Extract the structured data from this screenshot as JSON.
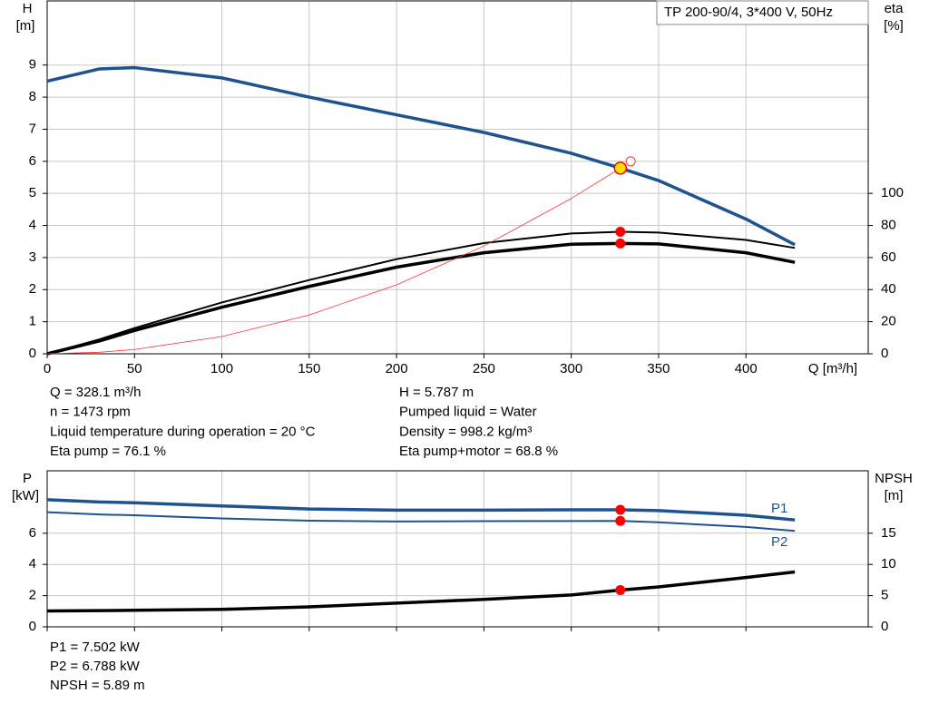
{
  "chart_data": [
    {
      "type": "line",
      "legend_box": "TP 200-90/4, 3*400 V, 50Hz",
      "y_label": [
        "H",
        "[m]"
      ],
      "y2_label": [
        "eta",
        "[%]"
      ],
      "x_label": "Q [m³/h]",
      "x": [
        0,
        30,
        50,
        100,
        150,
        200,
        250,
        300,
        328.1,
        350,
        400,
        428
      ],
      "xlim": [
        0,
        470
      ],
      "xticks": [
        0,
        50,
        100,
        150,
        200,
        250,
        300,
        350,
        400
      ],
      "ylim": [
        0,
        11
      ],
      "yticks": [
        0,
        1,
        2,
        3,
        4,
        5,
        6,
        7,
        8,
        9
      ],
      "y2lim": [
        0,
        220
      ],
      "y2ticks": [
        0,
        20,
        40,
        60,
        80,
        100
      ],
      "grid": true,
      "marker_at": 328.1,
      "open_marker": {
        "x": 334,
        "y": 6.0
      },
      "series": [
        {
          "color": "#1f5390",
          "values": [
            8.5,
            8.88,
            8.92,
            8.6,
            8.0,
            7.45,
            6.9,
            6.25,
            5.787,
            5.4,
            4.2,
            3.4
          ],
          "marker_color": "#ffe000"
        },
        {
          "color": "#000000",
          "axis": "y2",
          "values": [
            0,
            9,
            16,
            32,
            46,
            59,
            69,
            75,
            76.1,
            75.6,
            71,
            66
          ],
          "marker_color": "#ff0000"
        },
        {
          "color": "#000000",
          "axis": "y2",
          "values": [
            0,
            8,
            14.5,
            29,
            42,
            54,
            63,
            68.3,
            68.8,
            68.5,
            63,
            57
          ],
          "marker_color": "#ff0000"
        },
        {
          "color": "#ff3030",
          "values": [
            0,
            0.048,
            0.134,
            0.538,
            1.21,
            2.15,
            3.36,
            4.84,
            5.787,
            null,
            null,
            null
          ]
        }
      ],
      "info_left": [
        "Q = 328.1 m³/h",
        "n = 1473 rpm",
        "Liquid temperature during operation = 20 °C",
        "Eta pump = 76.1 %"
      ],
      "info_right": [
        "H = 5.787 m",
        "Pumped liquid = Water",
        "Density = 998.2 kg/m³",
        "Eta pump+motor = 68.8 %"
      ]
    },
    {
      "type": "line",
      "y_label": [
        "P",
        "[kW]"
      ],
      "y2_label": [
        "NPSH",
        "[m]"
      ],
      "x": [
        0,
        30,
        50,
        100,
        150,
        200,
        250,
        300,
        328.1,
        350,
        400,
        428
      ],
      "xlim": [
        0,
        470
      ],
      "xticks": [
        0,
        50,
        100,
        150,
        200,
        250,
        300,
        350,
        400
      ],
      "ylim": [
        0,
        10
      ],
      "yticks": [
        0,
        2,
        4,
        6
      ],
      "y2lim": [
        0,
        25
      ],
      "y2ticks": [
        0,
        5,
        10,
        15
      ],
      "grid": true,
      "marker_at": 328.1,
      "series": [
        {
          "name": "P1",
          "color": "#1f5390",
          "values": [
            8.15,
            8.0,
            7.95,
            7.75,
            7.55,
            7.48,
            7.48,
            7.5,
            7.502,
            7.45,
            7.15,
            6.85
          ],
          "marker_color": "#ff0000"
        },
        {
          "name": "P2",
          "color": "#1f5390",
          "values": [
            7.35,
            7.2,
            7.15,
            6.95,
            6.8,
            6.75,
            6.77,
            6.78,
            6.788,
            6.7,
            6.4,
            6.15
          ],
          "marker_color": "#ff0000"
        },
        {
          "color": "#000000",
          "axis": "y2",
          "values": [
            2.55,
            2.6,
            2.65,
            2.8,
            3.2,
            3.8,
            4.4,
            5.1,
            5.89,
            6.4,
            7.9,
            8.8
          ],
          "marker_color": "#ff0000"
        }
      ],
      "info_left": [
        "P1 = 7.502 kW",
        "P2 = 6.788 kW",
        "NPSH = 5.89 m"
      ]
    }
  ]
}
